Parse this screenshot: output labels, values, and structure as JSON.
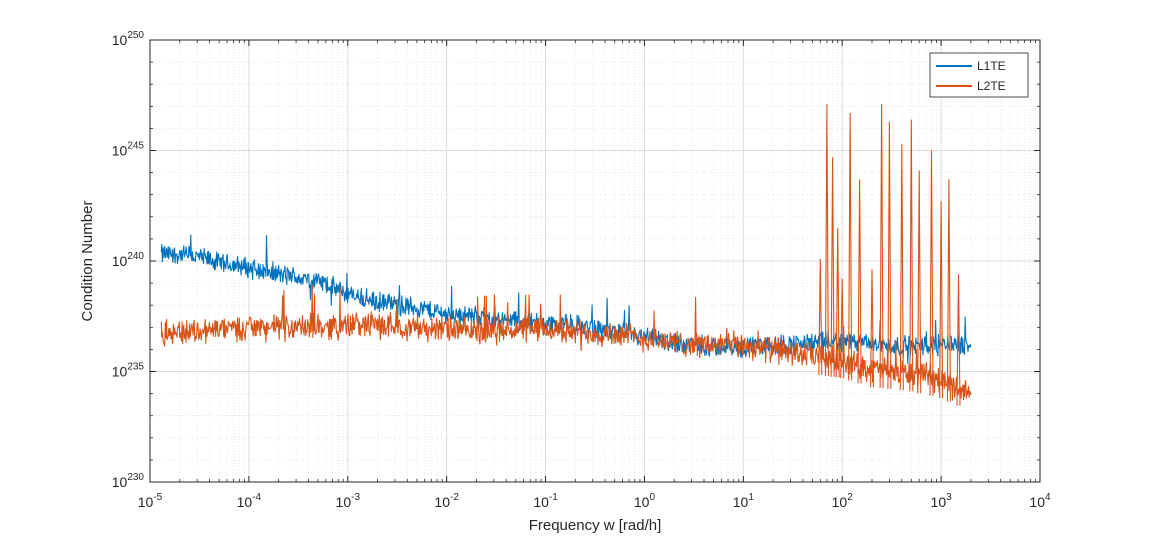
{
  "chart_data": {
    "type": "line",
    "title": "",
    "xlabel": "Frequency w [rad/h]",
    "ylabel": "Condition Number",
    "x_scale": "log",
    "y_scale": "log",
    "xlim": [
      1e-05,
      10000
    ],
    "ylim": [
      1e+230,
      1e+250
    ],
    "x_ticks": [
      {
        "base": "10",
        "exp": "-5"
      },
      {
        "base": "10",
        "exp": "-4"
      },
      {
        "base": "10",
        "exp": "-3"
      },
      {
        "base": "10",
        "exp": "-2"
      },
      {
        "base": "10",
        "exp": "-1"
      },
      {
        "base": "10",
        "exp": "0"
      },
      {
        "base": "10",
        "exp": "1"
      },
      {
        "base": "10",
        "exp": "2"
      },
      {
        "base": "10",
        "exp": "3"
      },
      {
        "base": "10",
        "exp": "4"
      }
    ],
    "y_ticks": [
      {
        "base": "10",
        "exp": "230"
      },
      {
        "base": "10",
        "exp": "235"
      },
      {
        "base": "10",
        "exp": "240"
      },
      {
        "base": "10",
        "exp": "245"
      },
      {
        "base": "10",
        "exp": "250"
      }
    ],
    "grid": true,
    "minor_grid": true,
    "legend_position": "top-right",
    "series": [
      {
        "name": "L1TE",
        "color": "#0072BD",
        "x": [
          1.3e-05,
          2e-05,
          3e-05,
          5e-05,
          0.0001,
          0.0002,
          0.0005,
          0.001,
          0.002,
          0.005,
          0.01,
          0.02,
          0.05,
          0.1,
          0.2,
          0.5,
          1,
          2,
          5,
          10,
          20,
          50,
          100,
          200,
          500,
          1000,
          2000
        ],
        "y_exponent": [
          240.3,
          240.3,
          240.2,
          239.9,
          239.7,
          239.4,
          239.1,
          238.5,
          238.1,
          237.9,
          237.6,
          237.5,
          237.3,
          237.2,
          237.1,
          236.8,
          236.5,
          236.3,
          236.1,
          236.1,
          236.2,
          236.3,
          236.4,
          236.2,
          236.1,
          236.3,
          236.2
        ]
      },
      {
        "name": "L2TE",
        "color": "#D95319",
        "x": [
          1.3e-05,
          2e-05,
          5e-05,
          0.0001,
          0.0002,
          0.0005,
          0.001,
          0.002,
          0.005,
          0.01,
          0.02,
          0.05,
          0.1,
          0.2,
          0.5,
          1,
          2,
          5,
          10,
          20,
          50,
          100,
          200,
          500,
          1000,
          2000
        ],
        "y_exponent": [
          236.7,
          236.8,
          236.9,
          237.0,
          237.0,
          237.0,
          237.1,
          237.1,
          237.0,
          236.9,
          236.8,
          236.9,
          236.9,
          236.8,
          236.7,
          236.5,
          236.3,
          236.2,
          236.2,
          236.0,
          235.7,
          235.5,
          235.1,
          234.9,
          234.6,
          234.0
        ]
      }
    ],
    "spikes": {
      "series": "L2TE",
      "x": [
        60,
        70,
        80,
        90,
        100,
        120,
        150,
        200,
        250,
        300,
        400,
        500,
        600,
        800,
        1000,
        1200,
        1500
      ],
      "y_exponent": [
        240.1,
        247.1,
        244.7,
        241.5,
        239.2,
        246.7,
        243.7,
        239.6,
        247.1,
        246.3,
        245.3,
        246.4,
        244.1,
        245.0,
        242.7,
        243.7,
        239.4
      ]
    }
  }
}
